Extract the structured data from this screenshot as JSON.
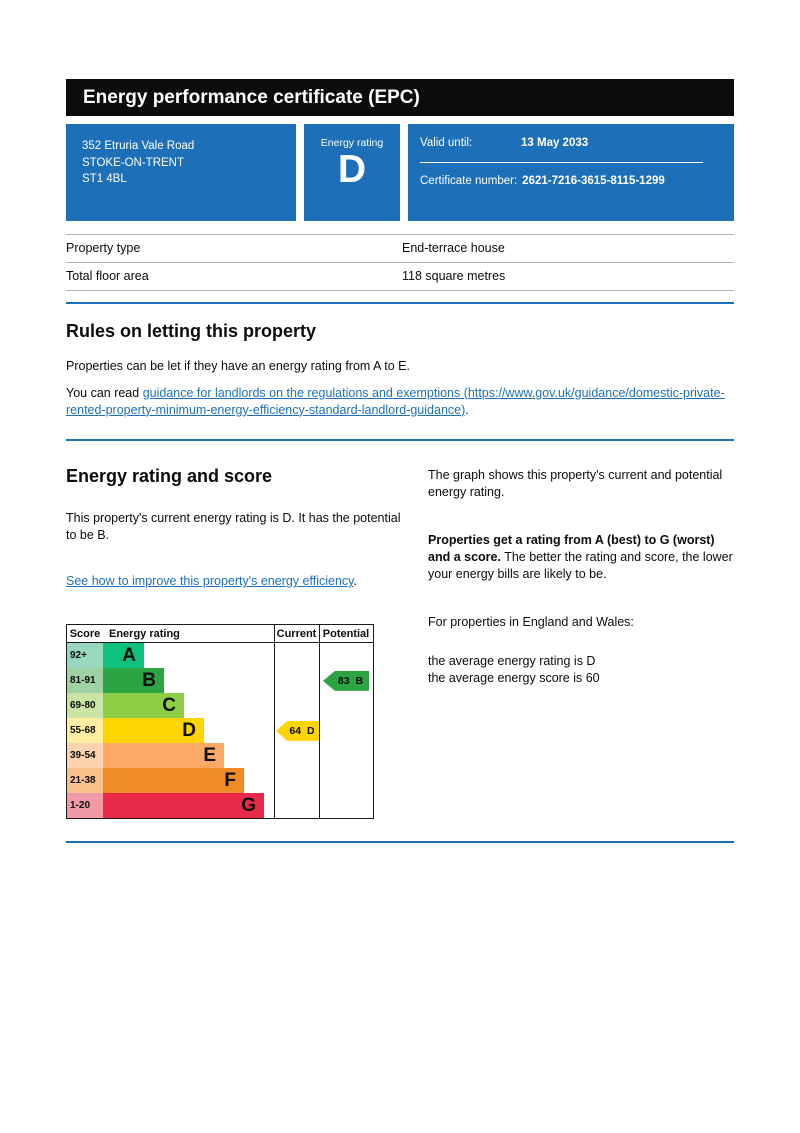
{
  "page_title": "Energy performance certificate (EPC)",
  "certificate": {
    "address_lines": [
      "352 Etruria Vale Road",
      "STOKE-ON-TRENT",
      "ST1 4BL"
    ],
    "energy_rating_label": "Energy rating",
    "energy_rating": "D",
    "valid_until_label": "Valid until:",
    "valid_until_value": "13 May 2033",
    "certificate_number_label": "Certificate number:",
    "certificate_number_value": "2621-7216-3615-8115-1299"
  },
  "summary": {
    "rows": [
      {
        "label": "Property type",
        "value": "End-terrace house"
      },
      {
        "label": "Total floor area",
        "value": "118 square metres"
      }
    ]
  },
  "rules": {
    "heading": "Rules on letting this property",
    "intro": "Properties can be let if they have an energy rating from A to E.",
    "read_prefix": "You can read ",
    "guidance_link": "guidance for landlords on the regulations and exemptions (https://www.gov.uk/guidance/domestic-private-rented-property-minimum-energy-efficiency-standard-landlord-guidance)",
    "suffix": "."
  },
  "rating": {
    "heading": "Energy rating and score",
    "current_summary": "This property's current energy rating is D. It has the potential to be B.",
    "improve_link": "See how to improve this property's energy efficiency",
    "improve_suffix": ".",
    "graph_intro": "The graph shows this property's current and potential energy rating.",
    "explain_bold": "Properties get a rating from A (best) to G (worst) and a score.",
    "explain_rest": " The better the rating and score, the lower your energy bills are likely to be.",
    "england_wales": "For properties in England and Wales:",
    "average_rating": "the average energy rating is D",
    "average_score": "the average energy score is 60"
  },
  "chart_data": {
    "type": "epc-rating-bar",
    "columns": [
      "Score",
      "Energy rating",
      "Current",
      "Potential"
    ],
    "bands": [
      {
        "score_range": "92+",
        "letter": "A",
        "band_color": "#10c07e",
        "score_cell_color": "#97d8bf"
      },
      {
        "score_range": "81-91",
        "letter": "B",
        "band_color": "#2ba443",
        "score_cell_color": "#9ed2a2"
      },
      {
        "score_range": "69-80",
        "letter": "C",
        "band_color": "#8dce46",
        "score_cell_color": "#c9e4a5"
      },
      {
        "score_range": "55-68",
        "letter": "D",
        "band_color": "#ffd500",
        "score_cell_color": "#fdeea2"
      },
      {
        "score_range": "39-54",
        "letter": "E",
        "band_color": "#fcaa65",
        "score_cell_color": "#fcd3ae"
      },
      {
        "score_range": "21-38",
        "letter": "F",
        "band_color": "#ef8c23",
        "score_cell_color": "#f7c18b"
      },
      {
        "score_range": "1-20",
        "letter": "G",
        "band_color": "#e8294a",
        "score_cell_color": "#f09aa8"
      }
    ],
    "current": {
      "score": "64",
      "band": "D",
      "band_index": 3,
      "arrow_color": "#ffd500"
    },
    "potential": {
      "score": "83",
      "band": "B",
      "band_index": 1,
      "arrow_color": "#2ba443"
    }
  },
  "colors": {
    "govuk_blue": "#1d70b8",
    "header_bar_black": "#0b0c0c",
    "table_border_gray": "#b1b4b6"
  }
}
